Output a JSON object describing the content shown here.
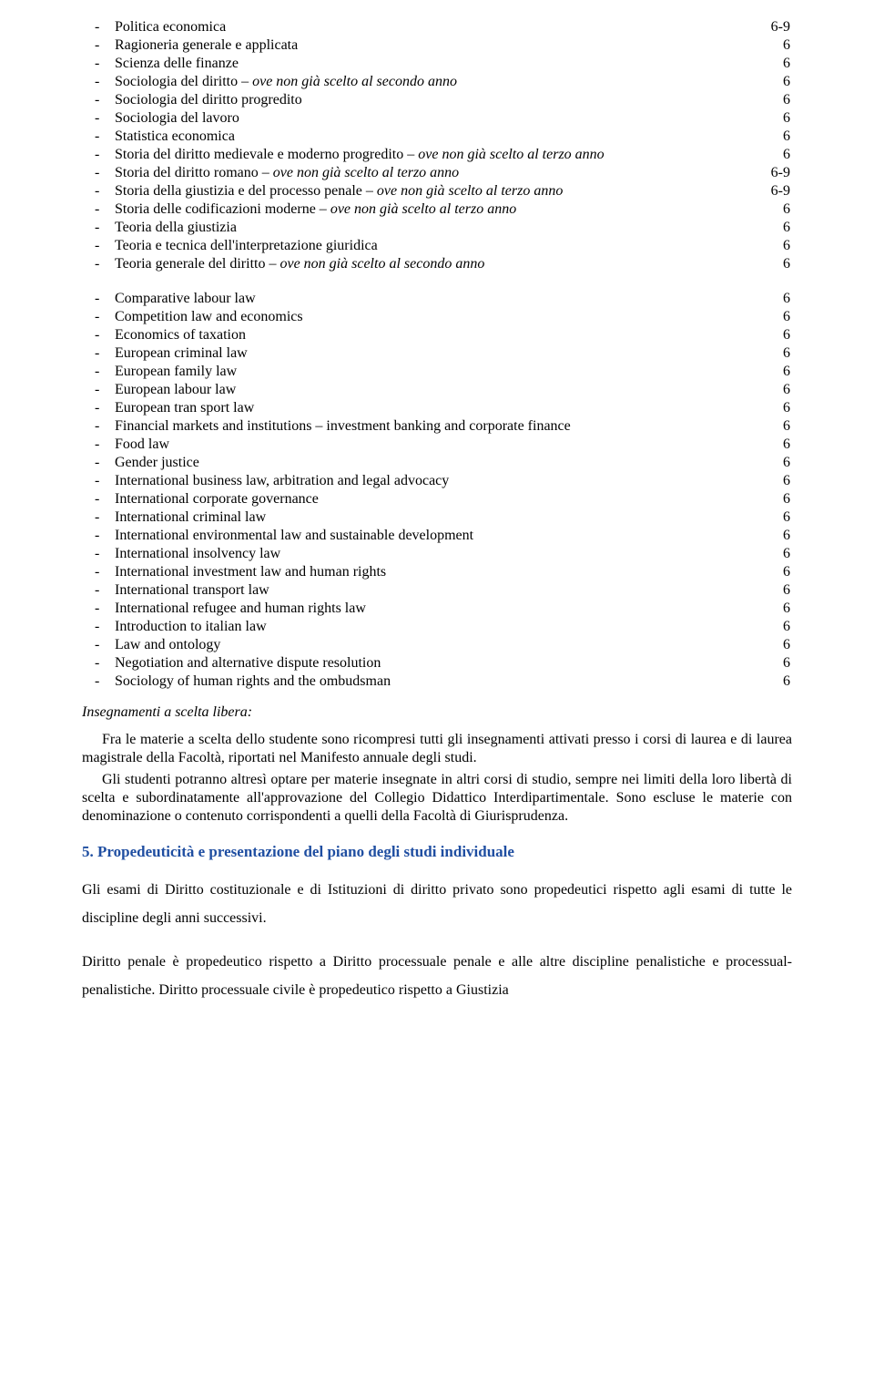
{
  "block1": [
    {
      "label": "Politica economica",
      "credits": "6-9"
    },
    {
      "label": "Ragioneria generale e applicata",
      "credits": "6"
    },
    {
      "label": "Scienza delle finanze",
      "credits": "6"
    },
    {
      "label_prefix": "Sociologia del diritto – ",
      "italic": "ove non già scelto al secondo anno",
      "credits": "6"
    },
    {
      "label": "Sociologia del diritto progredito",
      "credits": "6"
    },
    {
      "label": "Sociologia del lavoro",
      "credits": "6"
    },
    {
      "label": "Statistica economica",
      "credits": "6"
    },
    {
      "label_prefix": "Storia del diritto medievale e moderno progredito – ",
      "italic": "ove non già scelto al terzo anno",
      "credits": "6"
    },
    {
      "label_prefix": "Storia del diritto romano – ",
      "italic": "ove non già scelto al terzo anno",
      "credits": "6-9"
    },
    {
      "label_prefix": "Storia della giustizia e del processo penale – ",
      "italic": "ove non già scelto al terzo anno",
      "credits": "6-9"
    },
    {
      "label_prefix": "Storia delle codificazioni moderne – ",
      "italic": "ove non già scelto al terzo anno",
      "credits": "6"
    },
    {
      "label": "Teoria della giustizia",
      "credits": "6"
    },
    {
      "label": "Teoria e tecnica dell'interpretazione giuridica",
      "credits": "6"
    },
    {
      "label_prefix": "Teoria generale del diritto – ",
      "italic": "ove non già scelto al secondo anno",
      "credits": "6"
    }
  ],
  "block2": [
    {
      "label": "Comparative labour law",
      "credits": "6"
    },
    {
      "label": "Competition law and economics",
      "credits": "6"
    },
    {
      "label": "Economics of taxation",
      "credits": "6"
    },
    {
      "label": "European criminal law",
      "credits": "6"
    },
    {
      "label": "European family law",
      "credits": "6"
    },
    {
      "label": "European labour law",
      "credits": "6"
    },
    {
      "label": "European tran sport law",
      "credits": "6"
    },
    {
      "label": "Financial markets and institutions – investment banking and corporate finance",
      "credits": "6"
    },
    {
      "label": "Food law",
      "credits": "6"
    },
    {
      "label": "Gender justice",
      "credits": "6"
    },
    {
      "label": "International business law, arbitration and legal advocacy",
      "credits": "6"
    },
    {
      "label": "International corporate governance",
      "credits": "6"
    },
    {
      "label": "International criminal law",
      "credits": "6"
    },
    {
      "label": "International environmental law and sustainable development",
      "credits": "6"
    },
    {
      "label": "International insolvency law",
      "credits": "6"
    },
    {
      "label": "International investment law and human rights",
      "credits": "6"
    },
    {
      "label": "International transport law",
      "credits": "6"
    },
    {
      "label": "International refugee and human rights law",
      "credits": "6"
    },
    {
      "label": "Introduction to italian law",
      "credits": "6"
    },
    {
      "label": "Law and ontology",
      "credits": "6"
    },
    {
      "label": "Negotiation and alternative dispute resolution",
      "credits": "6"
    },
    {
      "label": "Sociology of human rights and the ombudsman",
      "credits": "6"
    }
  ],
  "freeChoiceTitle": "Insegnamenti a scelta libera:",
  "para1_a": "Fra le materie a scelta dello studente sono ricompresi tutti gli insegnamenti attivati presso i corsi di laurea e di laurea magistrale della Facoltà, riportati nel Manifesto annuale degli studi.",
  "para2_a": "Gli studenti potranno altresì optare per materie insegnate in altri corsi di studio, sempre nei limiti della loro libertà di scelta e subordinatamente all'approvazione del Collegio Didattico Interdipartimentale. Sono escluse le materie con denominazione o contenuto corrispondenti a quelli della Facoltà di Giurisprudenza.",
  "heading5": "5. Propedeuticità e presentazione del piano degli studi individuale",
  "bodyA": "Gli esami di Diritto costituzionale e di Istituzioni di diritto privato sono propedeutici rispetto agli esami di tutte le discipline degli anni successivi.",
  "bodyB": "Diritto penale è propedeutico rispetto a Diritto processuale penale e alle altre discipline penalistiche e processual-penalistiche. Diritto processuale civile è propedeutico rispetto a Giustizia",
  "bulletChar": "-"
}
